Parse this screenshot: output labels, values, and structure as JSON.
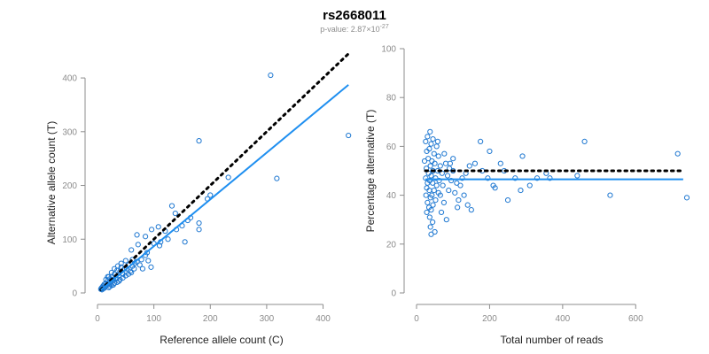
{
  "title": "rs2668011",
  "subtitle": {
    "prefix": "p-value: 2.87",
    "times": "×",
    "base": "10",
    "exponent": "-27"
  },
  "colors": {
    "points": "#1f78d1",
    "fit_line": "#1f8ff0",
    "reference_line": "#000000",
    "axes": "#8c8c8c"
  },
  "chart_data": [
    {
      "type": "scatter",
      "xlabel": "Reference allele count (C)",
      "ylabel": "Alternative allele count (T)",
      "xlim": [
        0,
        440
      ],
      "ylim": [
        0,
        410
      ],
      "xticks": [
        0,
        100,
        200,
        300,
        400
      ],
      "yticks": [
        0,
        100,
        200,
        300,
        400
      ],
      "grid": false,
      "reference_line": {
        "style": "dotted",
        "slope": 1,
        "intercept": 0,
        "x_range": [
          6,
          445
        ]
      },
      "fit_line": {
        "slope": 0.87,
        "intercept": 0,
        "x_range": [
          6,
          445
        ]
      },
      "points": [
        [
          307,
          405
        ],
        [
          445,
          293
        ],
        [
          180,
          283
        ],
        [
          318,
          213
        ],
        [
          232,
          215
        ],
        [
          200,
          182
        ],
        [
          195,
          175
        ],
        [
          132,
          162
        ],
        [
          138,
          148
        ],
        [
          180,
          130
        ],
        [
          180,
          118
        ],
        [
          155,
          95
        ],
        [
          96,
          118
        ],
        [
          108,
          123
        ],
        [
          85,
          105
        ],
        [
          120,
          115
        ],
        [
          112,
          95
        ],
        [
          70,
          108
        ],
        [
          72,
          90
        ],
        [
          100,
          92
        ],
        [
          60,
          80
        ],
        [
          90,
          60
        ],
        [
          80,
          45
        ],
        [
          95,
          48
        ],
        [
          62,
          62
        ],
        [
          66,
          55
        ],
        [
          55,
          52
        ],
        [
          50,
          60
        ],
        [
          48,
          45
        ],
        [
          42,
          48
        ],
        [
          58,
          40
        ],
        [
          45,
          35
        ],
        [
          40,
          40
        ],
        [
          38,
          32
        ],
        [
          35,
          42
        ],
        [
          32,
          28
        ],
        [
          30,
          35
        ],
        [
          28,
          25
        ],
        [
          26,
          30
        ],
        [
          24,
          22
        ],
        [
          22,
          26
        ],
        [
          20,
          18
        ],
        [
          18,
          22
        ],
        [
          16,
          14
        ],
        [
          15,
          18
        ],
        [
          14,
          12
        ],
        [
          12,
          16
        ],
        [
          12,
          9
        ],
        [
          10,
          13
        ],
        [
          10,
          8
        ],
        [
          9,
          11
        ],
        [
          8,
          10
        ],
        [
          8,
          6
        ],
        [
          7,
          9
        ],
        [
          6,
          7
        ],
        [
          35,
          20
        ],
        [
          30,
          18
        ],
        [
          40,
          25
        ],
        [
          45,
          28
        ],
        [
          50,
          32
        ],
        [
          55,
          35
        ],
        [
          60,
          38
        ],
        [
          65,
          45
        ],
        [
          28,
          15
        ],
        [
          38,
          22
        ],
        [
          20,
          30
        ],
        [
          25,
          38
        ],
        [
          30,
          45
        ],
        [
          15,
          25
        ],
        [
          18,
          30
        ],
        [
          52,
          45
        ],
        [
          70,
          58
        ],
        [
          78,
          62
        ],
        [
          85,
          70
        ],
        [
          110,
          88
        ],
        [
          125,
          100
        ],
        [
          150,
          125
        ],
        [
          165,
          140
        ],
        [
          42,
          55
        ],
        [
          36,
          50
        ],
        [
          25,
          14
        ],
        [
          22,
          12
        ],
        [
          33,
          26
        ],
        [
          44,
          36
        ],
        [
          62,
          50
        ],
        [
          75,
          52
        ],
        [
          88,
          75
        ],
        [
          140,
          118
        ],
        [
          160,
          135
        ],
        [
          20,
          10
        ]
      ]
    },
    {
      "type": "scatter",
      "xlabel": "Total number of reads",
      "ylabel": "Percentage alternative (T)",
      "xlim": [
        0,
        740
      ],
      "ylim": [
        0,
        100
      ],
      "xticks": [
        0,
        200,
        400,
        600
      ],
      "yticks": [
        0,
        20,
        40,
        60,
        80,
        100
      ],
      "grid": false,
      "reference_line": {
        "style": "dotted",
        "y": 50,
        "x_range": [
          0,
          730
        ]
      },
      "fit_line": {
        "y": 46.5,
        "x_range": [
          0,
          730
        ]
      },
      "points": [
        [
          37,
          66
        ],
        [
          30,
          64
        ],
        [
          45,
          63
        ],
        [
          25,
          62
        ],
        [
          40,
          61
        ],
        [
          55,
          60
        ],
        [
          35,
          59
        ],
        [
          28,
          58
        ],
        [
          48,
          57
        ],
        [
          60,
          56
        ],
        [
          32,
          55
        ],
        [
          42,
          54
        ],
        [
          22,
          54
        ],
        [
          50,
          53
        ],
        [
          65,
          52
        ],
        [
          38,
          52
        ],
        [
          27,
          51
        ],
        [
          45,
          50
        ],
        [
          58,
          50
        ],
        [
          70,
          49
        ],
        [
          33,
          49
        ],
        [
          40,
          48
        ],
        [
          52,
          47
        ],
        [
          25,
          47
        ],
        [
          62,
          46
        ],
        [
          36,
          46
        ],
        [
          44,
          45
        ],
        [
          30,
          45
        ],
        [
          55,
          44
        ],
        [
          72,
          44
        ],
        [
          28,
          43
        ],
        [
          48,
          42
        ],
        [
          35,
          42
        ],
        [
          60,
          41
        ],
        [
          42,
          40
        ],
        [
          26,
          40
        ],
        [
          38,
          39
        ],
        [
          52,
          38
        ],
        [
          30,
          37
        ],
        [
          45,
          36
        ],
        [
          34,
          35
        ],
        [
          40,
          34
        ],
        [
          28,
          33
        ],
        [
          36,
          31
        ],
        [
          44,
          29
        ],
        [
          38,
          27
        ],
        [
          50,
          25
        ],
        [
          40,
          24
        ],
        [
          80,
          53
        ],
        [
          90,
          51
        ],
        [
          100,
          50
        ],
        [
          85,
          48
        ],
        [
          95,
          46
        ],
        [
          110,
          45
        ],
        [
          120,
          44
        ],
        [
          88,
          42
        ],
        [
          105,
          41
        ],
        [
          130,
          40
        ],
        [
          115,
          38
        ],
        [
          140,
          36
        ],
        [
          150,
          34
        ],
        [
          125,
          47
        ],
        [
          135,
          49
        ],
        [
          145,
          52
        ],
        [
          100,
          55
        ],
        [
          160,
          53
        ],
        [
          175,
          62
        ],
        [
          200,
          58
        ],
        [
          210,
          44
        ],
        [
          230,
          53
        ],
        [
          250,
          38
        ],
        [
          270,
          47
        ],
        [
          285,
          42
        ],
        [
          290,
          56
        ],
        [
          310,
          44
        ],
        [
          330,
          47
        ],
        [
          355,
          49
        ],
        [
          365,
          47
        ],
        [
          440,
          48
        ],
        [
          460,
          62
        ],
        [
          530,
          40
        ],
        [
          715,
          57
        ],
        [
          740,
          39
        ],
        [
          180,
          50
        ],
        [
          195,
          47
        ],
        [
          215,
          43
        ],
        [
          240,
          50
        ],
        [
          75,
          37
        ],
        [
          68,
          33
        ],
        [
          82,
          30
        ],
        [
          112,
          35
        ],
        [
          65,
          40
        ],
        [
          76,
          57
        ],
        [
          92,
          53
        ],
        [
          58,
          62
        ]
      ]
    }
  ]
}
